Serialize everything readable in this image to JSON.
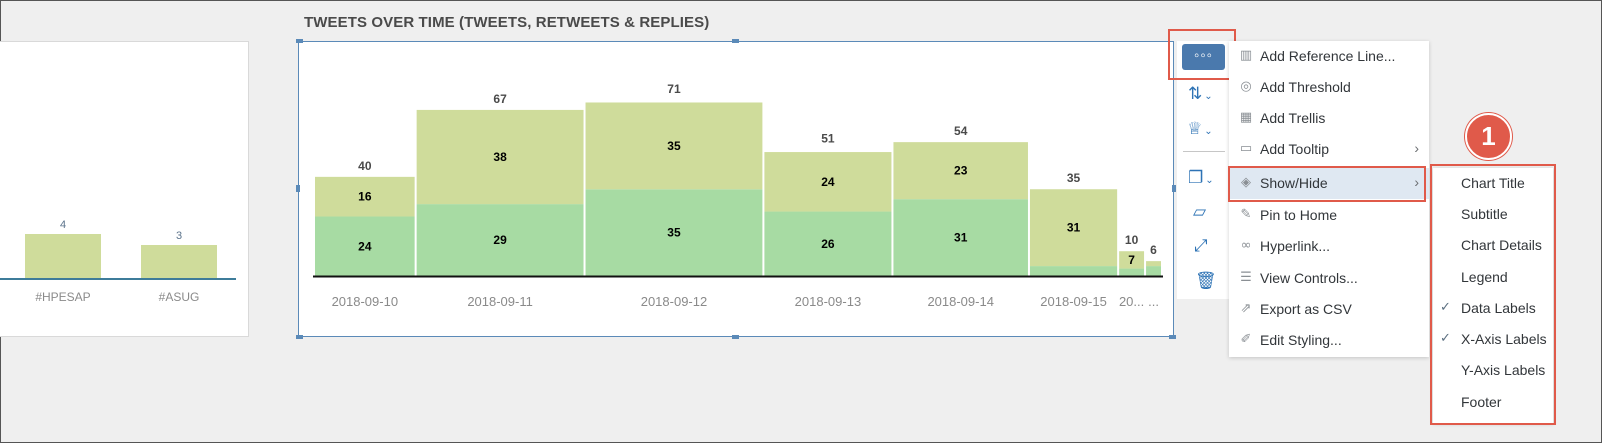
{
  "left_chart": {
    "bars": [
      {
        "label": "#HPESAP",
        "value": "4"
      },
      {
        "label": "#ASUG",
        "value": "3"
      }
    ]
  },
  "chart_data": {
    "type": "bar",
    "title": "TWEETS OVER TIME (TWEETS, RETWEETS & REPLIES)",
    "categories": [
      "2018-09-10",
      "2018-09-11",
      "2018-09-12",
      "2018-09-13",
      "2018-09-14",
      "2018-09-15",
      "20...",
      "..."
    ],
    "series": [
      {
        "values": [
          24,
          29,
          35,
          26,
          31,
          4,
          3,
          4
        ],
        "labels": [
          "24",
          "29",
          "35",
          "26",
          "31",
          "",
          "",
          ""
        ],
        "color": "#a7dba3"
      },
      {
        "values": [
          16,
          38,
          35,
          24,
          23,
          31,
          7,
          2
        ],
        "labels": [
          "16",
          "38",
          "35",
          "24",
          "23",
          "31",
          "7",
          ""
        ],
        "color": "#cfdc9b"
      }
    ],
    "totals": [
      40,
      67,
      71,
      51,
      54,
      35,
      10,
      6
    ],
    "grid": false,
    "legend": "none",
    "stacked": true,
    "variable_width": true
  },
  "toolbar": {
    "more_label": "◦◦◦",
    "icons": [
      "sort-icon",
      "trophy-icon",
      "copy-icon",
      "comment-icon",
      "expand-icon",
      "delete-icon"
    ]
  },
  "menu": {
    "items": [
      {
        "label": "Add Reference Line...",
        "icon": "reference-line-icon",
        "glyph": "▥"
      },
      {
        "label": "Add Threshold",
        "icon": "threshold-icon",
        "glyph": "◎"
      },
      {
        "label": "Add Trellis",
        "icon": "trellis-icon",
        "glyph": "▦"
      },
      {
        "label": "Add Tooltip",
        "icon": "tooltip-icon",
        "glyph": "▭"
      },
      {
        "label": "Show/Hide",
        "icon": "show-hide-icon",
        "glyph": "◈"
      },
      {
        "label": "Pin to Home",
        "icon": "pin-icon",
        "glyph": "✎"
      },
      {
        "label": "Hyperlink...",
        "icon": "link-icon",
        "glyph": "∞"
      },
      {
        "label": "View Controls...",
        "icon": "controls-icon",
        "glyph": "☰"
      },
      {
        "label": "Export as CSV",
        "icon": "export-icon",
        "glyph": "⇗"
      },
      {
        "label": "Edit Styling...",
        "icon": "styling-icon",
        "glyph": "✐"
      }
    ]
  },
  "submenu": {
    "items": [
      {
        "label": "Chart Title",
        "checked": false
      },
      {
        "label": "Subtitle",
        "checked": false
      },
      {
        "label": "Chart Details",
        "checked": false
      },
      {
        "label": "Legend",
        "checked": false
      },
      {
        "label": "Data Labels",
        "checked": true
      },
      {
        "label": "X-Axis Labels",
        "checked": true
      },
      {
        "label": "Y-Axis Labels",
        "checked": false
      },
      {
        "label": "Footer",
        "checked": false
      }
    ]
  },
  "badge": {
    "number": "1"
  },
  "colors": {
    "accent": "#4a79ad",
    "highlight": "#e05a4a",
    "bar_green": "#a7dba3",
    "bar_olive": "#cfdc9b"
  }
}
